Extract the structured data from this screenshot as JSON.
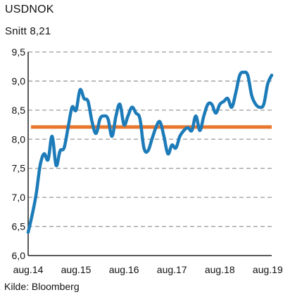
{
  "title": "USDNOK",
  "subtitle": "Snitt 8,21",
  "source": "Kilde: Bloomberg",
  "colors": {
    "line": "#1C7BB8",
    "average": "#E8772E",
    "grid": "#9A9A9A",
    "axis": "#222222"
  },
  "chart_data": {
    "type": "line",
    "title": "USDNOK",
    "subtitle": "Snitt 8,21",
    "xlabel": "",
    "ylabel": "",
    "ylim": [
      6.0,
      9.5
    ],
    "xlim": [
      "2014-08",
      "2019-09"
    ],
    "y_ticks": [
      6.0,
      6.5,
      7.0,
      7.5,
      8.0,
      8.5,
      9.0,
      9.5
    ],
    "y_tick_labels": [
      "6,0",
      "6,5",
      "7,0",
      "7,5",
      "8,0",
      "8,5",
      "9,0",
      "9,5"
    ],
    "x_ticks": [
      "2014-08",
      "2015-08",
      "2016-08",
      "2017-08",
      "2018-08",
      "2019-08"
    ],
    "x_tick_labels": [
      "aug.14",
      "aug.15",
      "aug.16",
      "aug.17",
      "aug.18",
      "aug.19"
    ],
    "grid": "horizontal dashed",
    "reference_line": {
      "value": 8.21
    },
    "series": [
      {
        "x": [
          "2014-08",
          "2014-09",
          "2014-10",
          "2014-11",
          "2014-12",
          "2015-01",
          "2015-02",
          "2015-03",
          "2015-04",
          "2015-05",
          "2015-06",
          "2015-07",
          "2015-08",
          "2015-09",
          "2015-10",
          "2015-11",
          "2015-12",
          "2016-01",
          "2016-02",
          "2016-03",
          "2016-04",
          "2016-05",
          "2016-06",
          "2016-07",
          "2016-08",
          "2016-09",
          "2016-10",
          "2016-11",
          "2016-12",
          "2017-01",
          "2017-02",
          "2017-03",
          "2017-04",
          "2017-05",
          "2017-06",
          "2017-07",
          "2017-08",
          "2017-09",
          "2017-10",
          "2017-11",
          "2017-12",
          "2018-01",
          "2018-02",
          "2018-03",
          "2018-04",
          "2018-05",
          "2018-06",
          "2018-07",
          "2018-08",
          "2018-09",
          "2018-10",
          "2018-11",
          "2018-12",
          "2019-01",
          "2019-02",
          "2019-03",
          "2019-04",
          "2019-05",
          "2019-06",
          "2019-07",
          "2019-08",
          "2019-09"
        ],
        "y": [
          6.4,
          6.7,
          7.05,
          7.55,
          7.75,
          7.65,
          8.05,
          7.55,
          7.8,
          7.85,
          8.2,
          8.55,
          8.5,
          8.85,
          8.7,
          8.65,
          8.3,
          8.1,
          8.35,
          8.4,
          8.35,
          8.05,
          8.4,
          8.6,
          8.25,
          8.4,
          8.55,
          8.45,
          8.35,
          7.85,
          7.8,
          8.0,
          8.2,
          8.3,
          8.05,
          7.75,
          7.9,
          7.85,
          8.05,
          8.15,
          8.2,
          8.15,
          8.4,
          8.15,
          8.4,
          8.6,
          8.6,
          8.45,
          8.6,
          8.65,
          8.7,
          8.55,
          8.8,
          9.1,
          9.15,
          9.1,
          8.75,
          8.6,
          8.55,
          8.6,
          8.95,
          9.1
        ]
      }
    ]
  }
}
